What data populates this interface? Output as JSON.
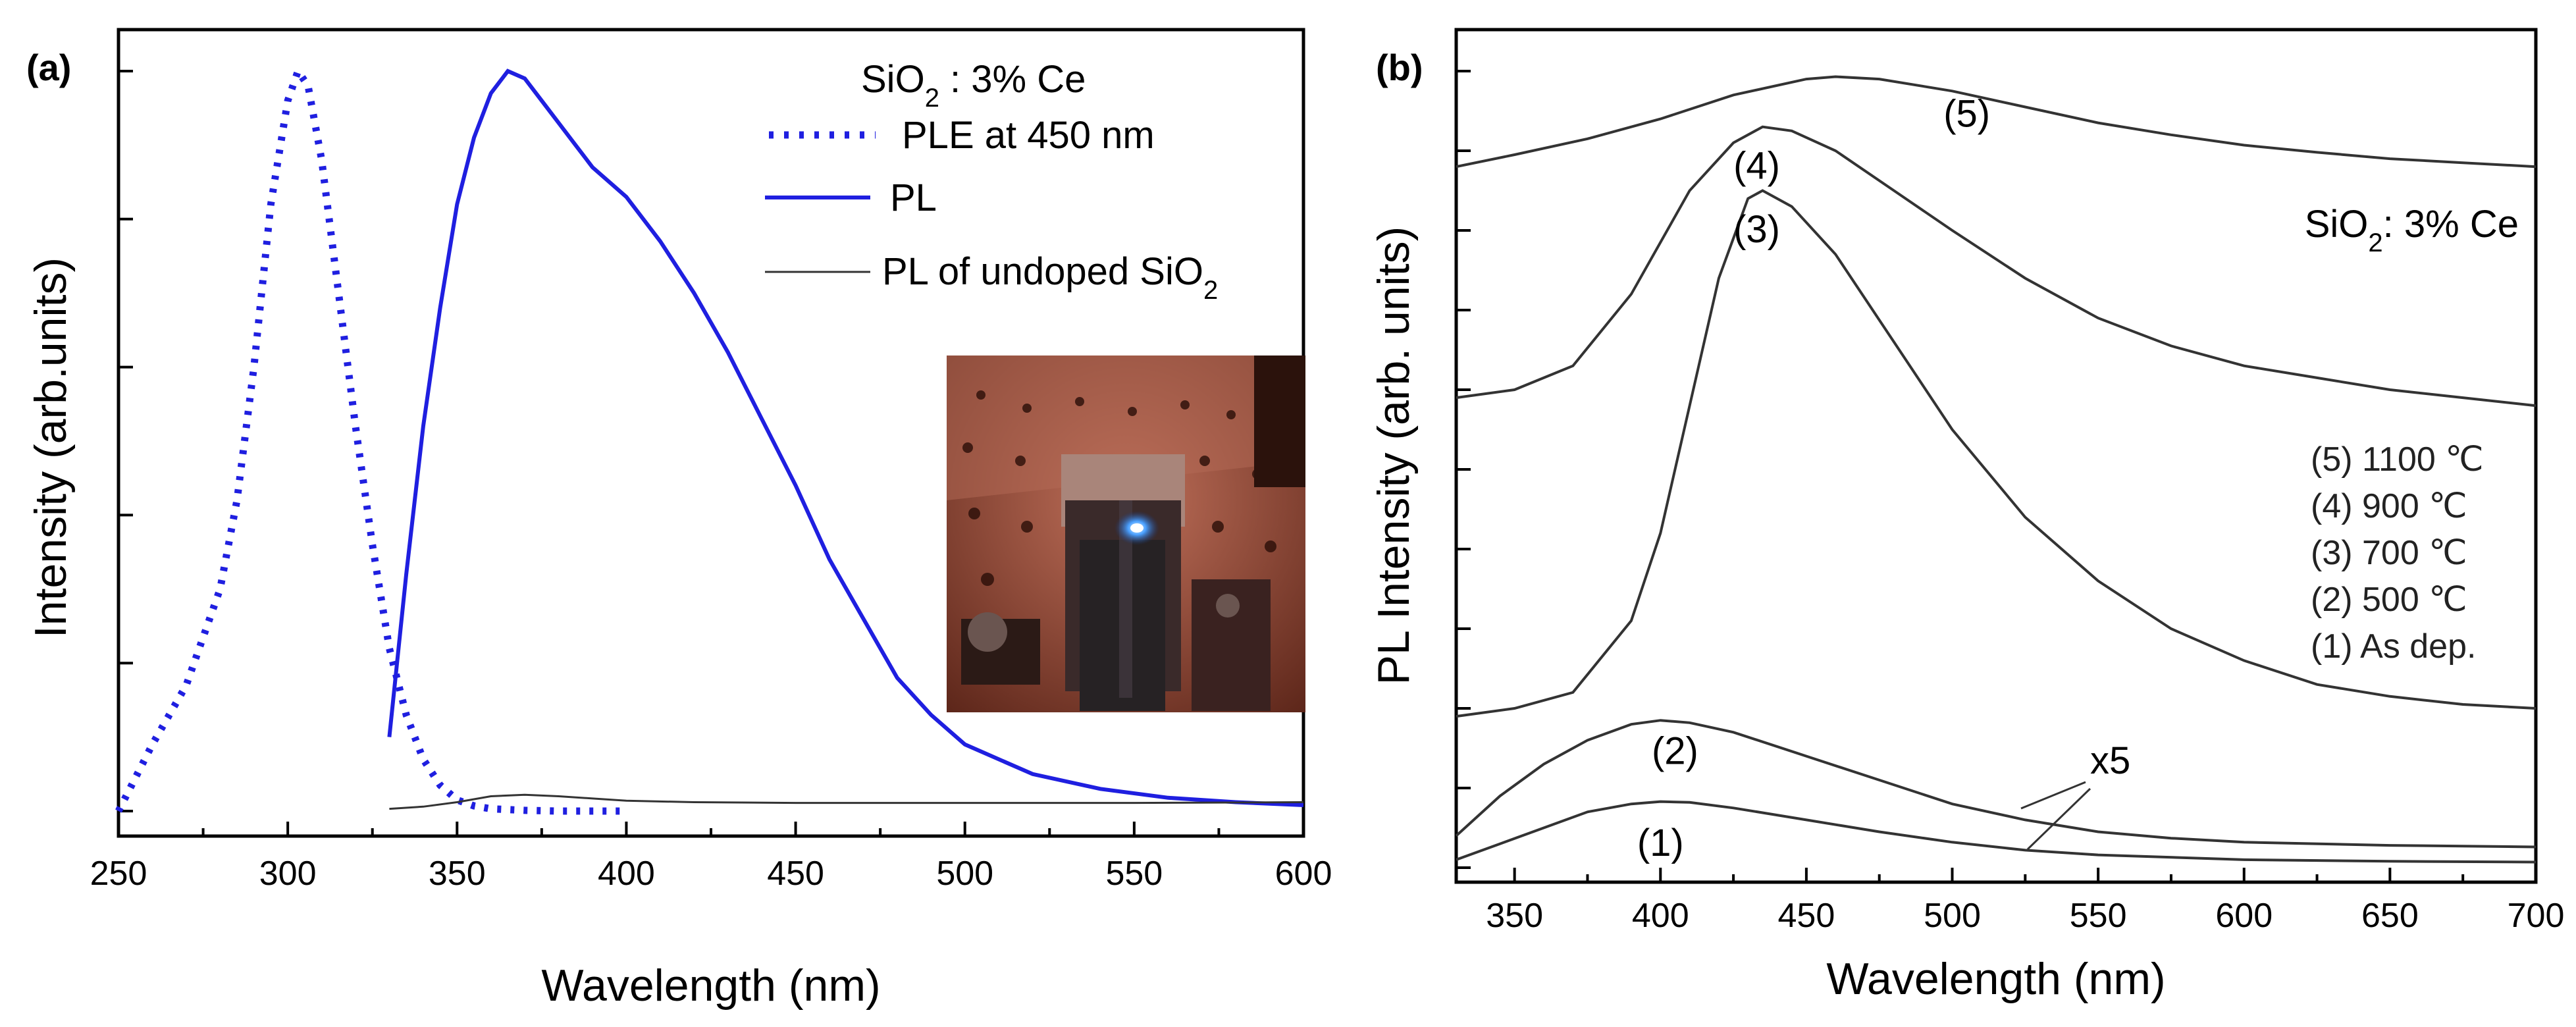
{
  "colors": {
    "blue": "#1f1fe0",
    "gray": "#333333",
    "black": "#000000"
  },
  "panel_labels": [
    "(a)",
    "(b)"
  ],
  "chart_data": [
    {
      "panel": "(a)",
      "type": "line",
      "xlabel": "Wavelength (nm)",
      "ylabel": "Intensity (arb.units)",
      "xlim": [
        250,
        600
      ],
      "ylim": [
        0,
        1.0
      ],
      "xticks": [
        250,
        300,
        350,
        400,
        450,
        500,
        550,
        600
      ],
      "xtick_labels": [
        "250",
        "300",
        "350",
        "400",
        "450",
        "500",
        "550",
        "600"
      ],
      "legend_title": {
        "base": "SiO",
        "sub": "2",
        "rest": " : 3% Ce"
      },
      "legend_position": "top-right",
      "inset": "photo",
      "series": [
        {
          "name": "PLE at 450 nm",
          "style": "dotted",
          "color": "#1f1fe0",
          "x": [
            250,
            260,
            270,
            280,
            285,
            290,
            295,
            300,
            303,
            306,
            310,
            315,
            320,
            325,
            330,
            335,
            340,
            345,
            350,
            355,
            360,
            370,
            380,
            390,
            400
          ],
          "y": [
            0.0,
            0.09,
            0.17,
            0.3,
            0.42,
            0.6,
            0.82,
            0.96,
            1.0,
            0.98,
            0.88,
            0.7,
            0.52,
            0.36,
            0.22,
            0.13,
            0.07,
            0.035,
            0.015,
            0.007,
            0.003,
            0.001,
            0.0,
            0.0,
            0.0
          ]
        },
        {
          "name": "PL",
          "style": "solid",
          "color": "#1f1fe0",
          "x": [
            330,
            335,
            340,
            345,
            350,
            355,
            360,
            365,
            370,
            375,
            380,
            385,
            390,
            400,
            410,
            420,
            430,
            440,
            450,
            460,
            470,
            480,
            490,
            500,
            520,
            540,
            560,
            580,
            600
          ],
          "y": [
            0.1,
            0.32,
            0.52,
            0.68,
            0.82,
            0.91,
            0.97,
            1.0,
            0.99,
            0.96,
            0.93,
            0.9,
            0.87,
            0.83,
            0.77,
            0.7,
            0.62,
            0.53,
            0.44,
            0.34,
            0.26,
            0.18,
            0.13,
            0.09,
            0.05,
            0.03,
            0.018,
            0.012,
            0.008
          ]
        },
        {
          "name_parts": {
            "base": "PL of undoped SiO",
            "sub": "2"
          },
          "style": "solid",
          "color": "#333333",
          "x": [
            330,
            340,
            350,
            360,
            370,
            380,
            390,
            400,
            420,
            450,
            500,
            550,
            600
          ],
          "y": [
            0.003,
            0.006,
            0.012,
            0.02,
            0.022,
            0.02,
            0.017,
            0.014,
            0.012,
            0.011,
            0.011,
            0.011,
            0.012
          ]
        }
      ]
    },
    {
      "panel": "(b)",
      "type": "line",
      "xlabel": "Wavelength (nm)",
      "ylabel": "PL Intensity (arb. units)",
      "xlim": [
        330,
        700
      ],
      "ylim": [
        0,
        1.0
      ],
      "xticks": [
        350,
        400,
        450,
        500,
        550,
        600,
        650,
        700
      ],
      "xtick_labels": [
        "350",
        "400",
        "450",
        "500",
        "550",
        "600",
        "650",
        "700"
      ],
      "annotation_title": {
        "base": "SiO",
        "sub": "2",
        "rest": ": 3% Ce"
      },
      "legend_entries": [
        "(5) 1100 ℃",
        "(4) 900 ℃",
        "(3) 700 ℃",
        "(2) 500 ℃",
        "(1) As dep."
      ],
      "multiplier_label": "x5",
      "series": [
        {
          "label": "(5)",
          "x": [
            330,
            350,
            375,
            400,
            425,
            450,
            460,
            475,
            500,
            525,
            550,
            575,
            600,
            625,
            650,
            675,
            700
          ],
          "y": [
            0.88,
            0.895,
            0.915,
            0.94,
            0.97,
            0.99,
            0.993,
            0.99,
            0.975,
            0.955,
            0.935,
            0.92,
            0.907,
            0.898,
            0.89,
            0.885,
            0.88
          ]
        },
        {
          "label": "(4)",
          "x": [
            330,
            350,
            370,
            390,
            410,
            425,
            435,
            445,
            460,
            480,
            500,
            525,
            550,
            575,
            600,
            625,
            650,
            675,
            700
          ],
          "y": [
            0.59,
            0.6,
            0.63,
            0.72,
            0.85,
            0.91,
            0.93,
            0.925,
            0.9,
            0.85,
            0.8,
            0.74,
            0.69,
            0.655,
            0.63,
            0.615,
            0.6,
            0.59,
            0.58
          ]
        },
        {
          "label": "(3)",
          "x": [
            330,
            350,
            370,
            390,
            400,
            410,
            420,
            430,
            435,
            445,
            460,
            480,
            500,
            525,
            550,
            575,
            600,
            625,
            650,
            675,
            700
          ],
          "y": [
            0.19,
            0.2,
            0.22,
            0.31,
            0.42,
            0.58,
            0.74,
            0.84,
            0.85,
            0.83,
            0.77,
            0.66,
            0.55,
            0.44,
            0.36,
            0.3,
            0.26,
            0.23,
            0.215,
            0.205,
            0.2
          ]
        },
        {
          "label": "(2)",
          "x": [
            330,
            345,
            360,
            375,
            390,
            400,
            410,
            425,
            450,
            475,
            500,
            525,
            550,
            575,
            600,
            650,
            700
          ],
          "y": [
            0.04,
            0.09,
            0.13,
            0.16,
            0.18,
            0.185,
            0.182,
            0.17,
            0.14,
            0.11,
            0.08,
            0.06,
            0.045,
            0.037,
            0.032,
            0.028,
            0.026
          ]
        },
        {
          "label": "(1)",
          "x": [
            330,
            345,
            360,
            375,
            390,
            400,
            410,
            425,
            450,
            475,
            500,
            525,
            550,
            600,
            650,
            700
          ],
          "y": [
            0.01,
            0.03,
            0.05,
            0.07,
            0.08,
            0.083,
            0.082,
            0.075,
            0.06,
            0.045,
            0.032,
            0.022,
            0.016,
            0.01,
            0.008,
            0.007
          ]
        }
      ]
    }
  ]
}
